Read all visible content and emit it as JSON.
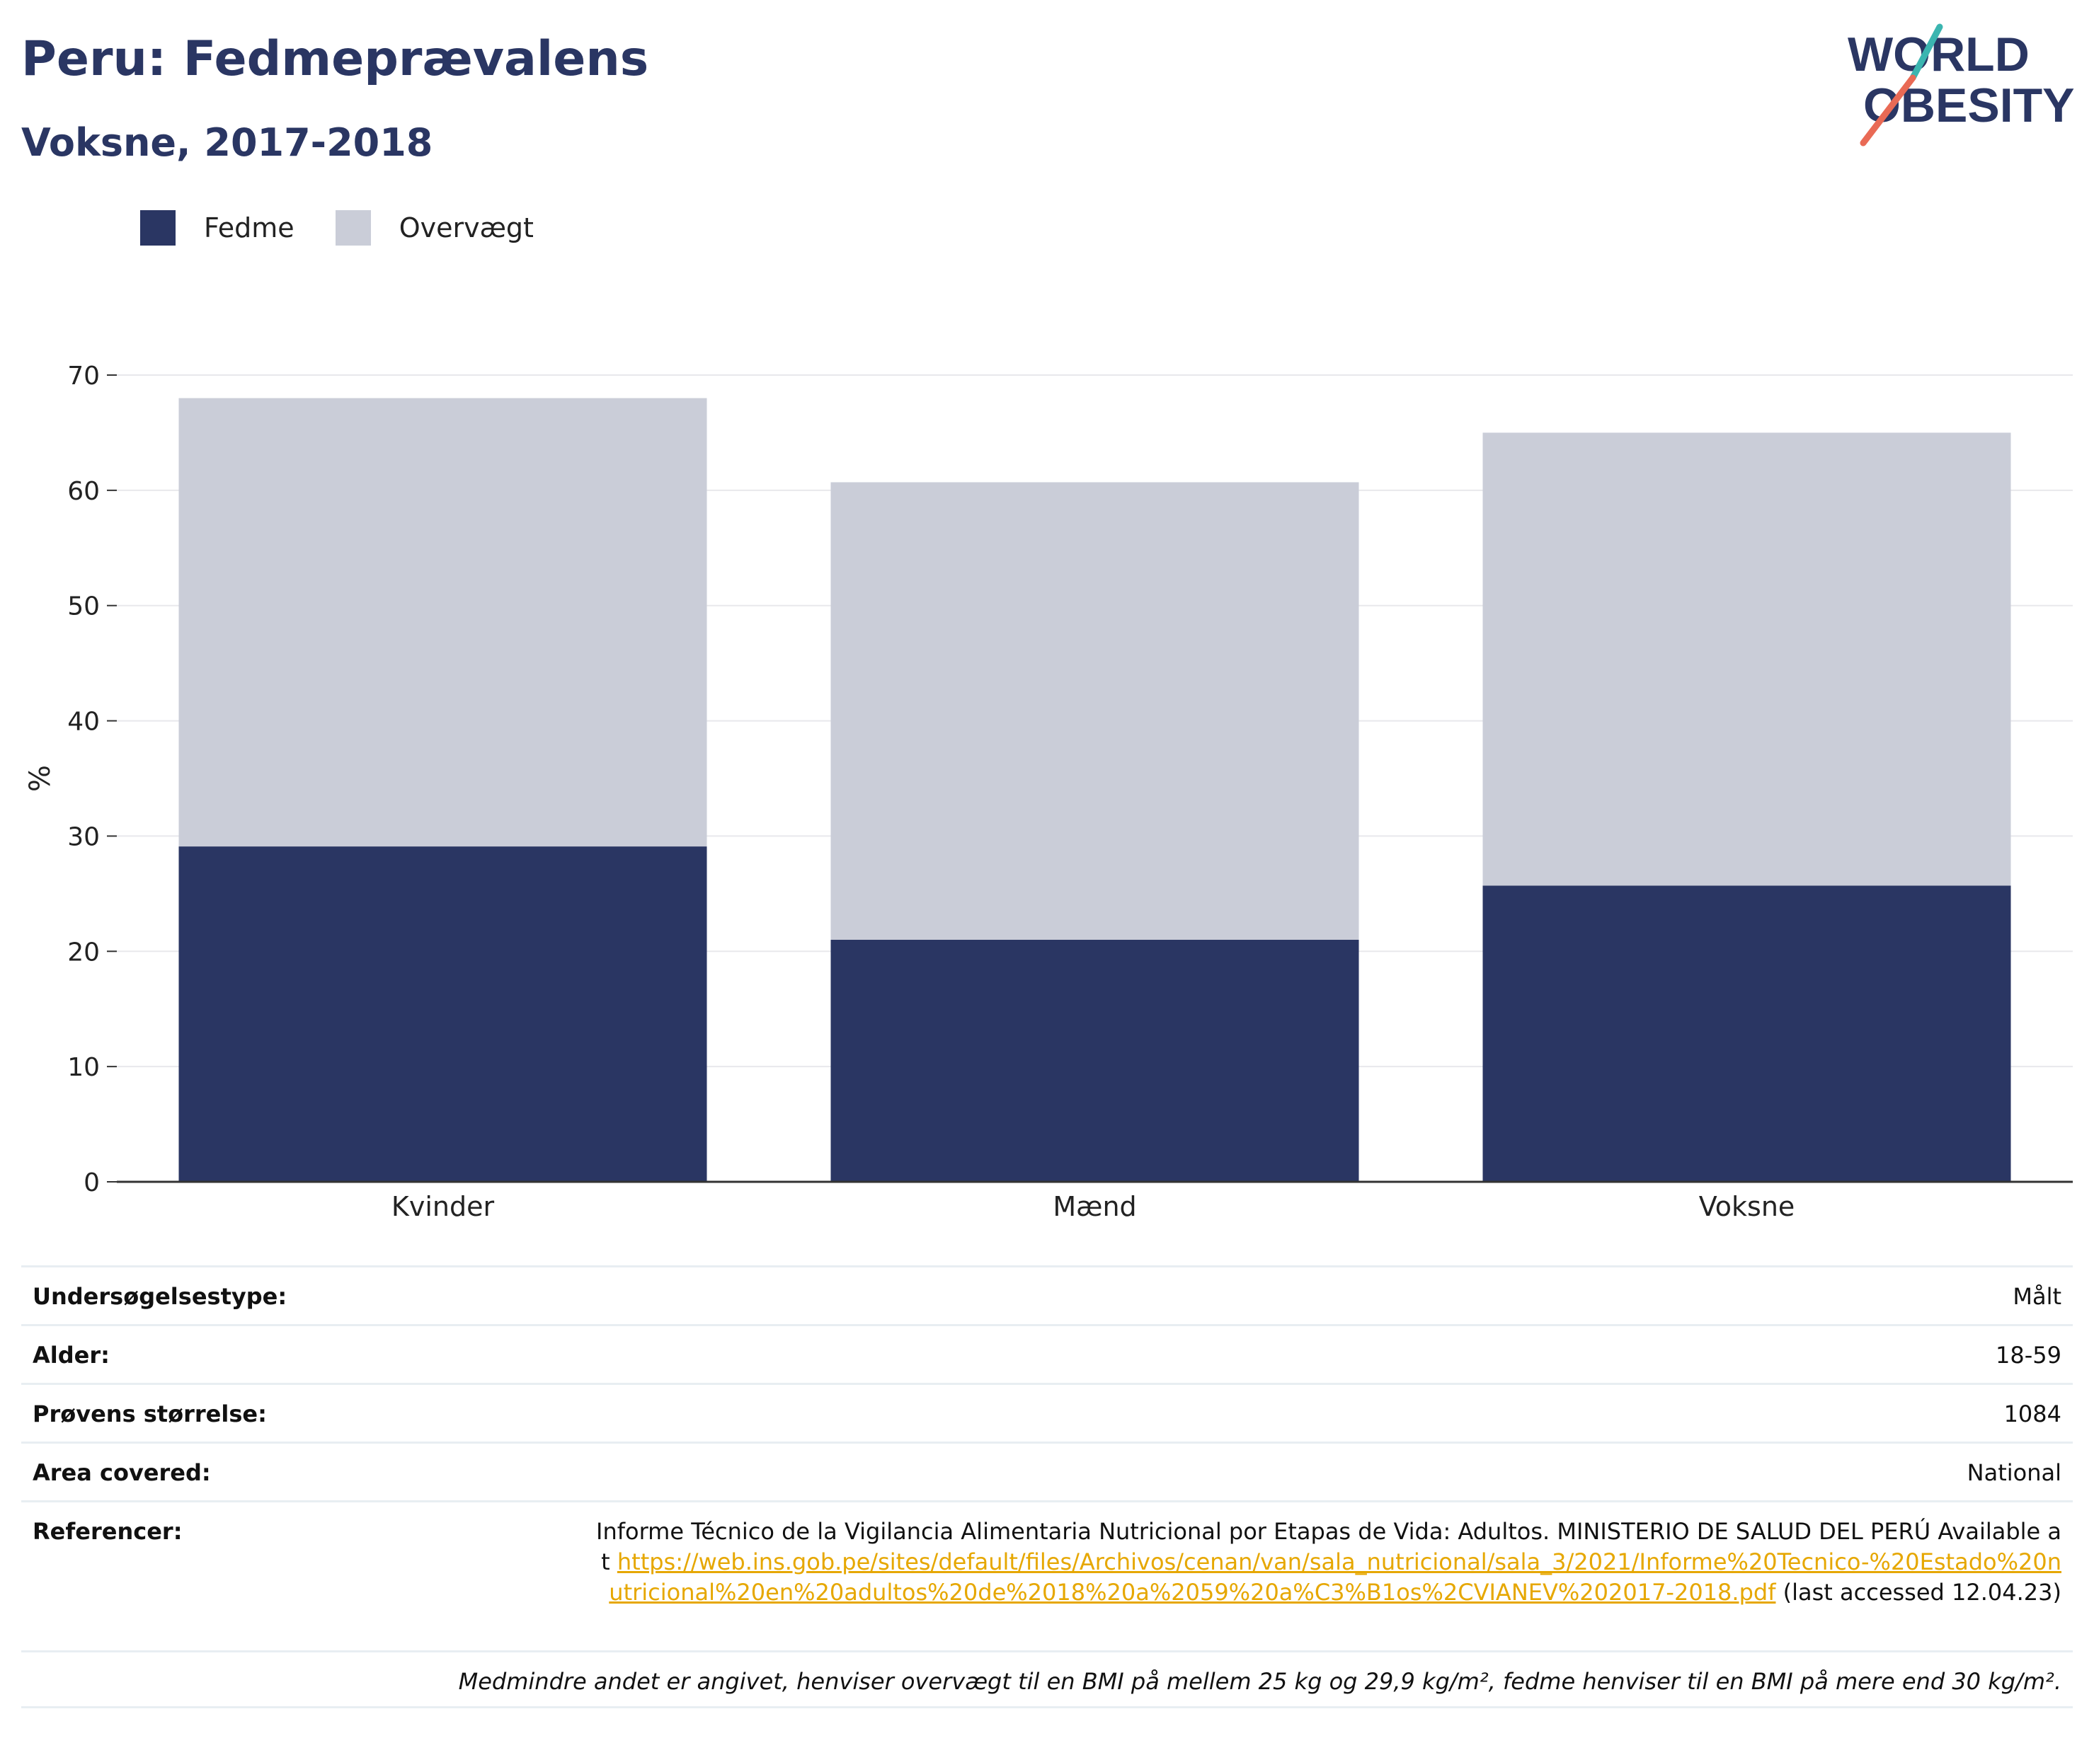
{
  "header": {
    "title": "Peru: Fedmeprævalens",
    "subtitle": "Voksne, 2017-2018",
    "logo_line1": "WORLD",
    "logo_line2": "OBESITY"
  },
  "legend": {
    "items": [
      {
        "label": "Fedme",
        "color": "#2a3663"
      },
      {
        "label": "Overvægt",
        "color": "#cacdd8"
      }
    ]
  },
  "chart_data": {
    "type": "bar",
    "stacked": true,
    "categories": [
      "Kvinder",
      "Mænd",
      "Voksne"
    ],
    "series": [
      {
        "name": "Fedme",
        "color": "#2a3663",
        "values": [
          29.1,
          21.0,
          25.7
        ]
      },
      {
        "name": "Overvægt",
        "color": "#cacdd8",
        "values": [
          38.9,
          39.7,
          39.3
        ]
      }
    ],
    "ylabel": "%",
    "xlabel": "",
    "ylim": [
      0,
      70
    ],
    "yticks": [
      0,
      10,
      20,
      30,
      40,
      50,
      60,
      70
    ],
    "grid": true,
    "legend_position": "top-left"
  },
  "info": {
    "survey_type": {
      "label": "Undersøgelsestype:",
      "value": "Målt"
    },
    "age": {
      "label": "Alder:",
      "value": "18-59"
    },
    "sample_size": {
      "label": "Prøvens størrelse:",
      "value": "1084"
    },
    "area": {
      "label": "Area covered:",
      "value": "National"
    },
    "references": {
      "label": "Referencer:",
      "text_before": "Informe Técnico de la Vigilancia Alimentaria Nutricional por Etapas de Vida: Adultos. MINISTERIO DE SALUD DEL PERÚ Available at ",
      "link": "https://web.ins.gob.pe/sites/default/files/Archivos/cenan/van/sala_nutricional/sala_3/2021/Informe%20Tecnico-%20Estado%20nutricional%20en%20adultos%20de%2018%20a%2059%20a%C3%B1os%2CVIANEV%202017-2018.pdf",
      "text_after": " (last accessed 12.04.23)"
    },
    "footnote": "Medmindre andet er angivet, henviser overvægt til en BMI på mellem 25 kg og 29,9 kg/m², fedme henviser til en BMI på mere end 30 kg/m²."
  }
}
